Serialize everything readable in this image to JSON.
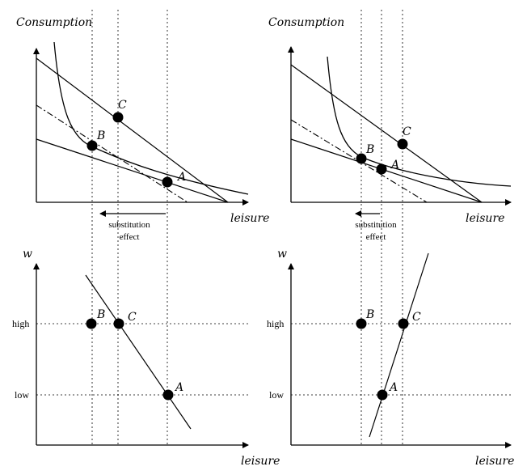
{
  "top_left": {
    "y_axis_label": "Consumption",
    "x_axis_label": "leisure",
    "points": {
      "A": "A",
      "B": "B",
      "C": "C"
    },
    "arrow_label_line1": "substitution",
    "arrow_label_line2": "effect"
  },
  "top_right": {
    "y_axis_label": "Consumption",
    "x_axis_label": "leisure",
    "points": {
      "A": "A",
      "B": "B",
      "C": "C"
    },
    "arrow_label_line1": "substitution",
    "arrow_label_line2": "effect"
  },
  "bottom_left": {
    "y_axis_label": "w",
    "x_axis_label": "leisure",
    "tick_high": "high",
    "tick_low": "low",
    "points": {
      "A": "A",
      "B": "B",
      "C": "C"
    }
  },
  "bottom_right": {
    "y_axis_label": "w",
    "x_axis_label": "leisure",
    "tick_high": "high",
    "tick_low": "low",
    "points": {
      "A": "A",
      "B": "B",
      "C": "C"
    }
  }
}
